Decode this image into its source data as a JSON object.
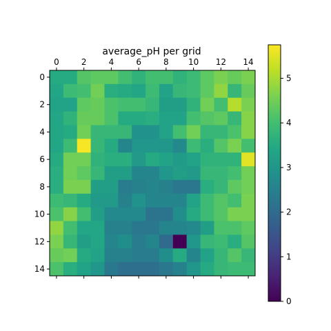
{
  "chart_data": {
    "type": "heatmap",
    "title": "average_pH per grid",
    "rows": 15,
    "cols": 15,
    "x_ticks": [
      "0",
      "2",
      "4",
      "6",
      "8",
      "10",
      "12",
      "14"
    ],
    "y_ticks": [
      "0",
      "2",
      "4",
      "6",
      "8",
      "10",
      "12",
      "14"
    ],
    "x_tick_position": "top",
    "colormap": "viridis",
    "colorbar": {
      "min": 0,
      "max": 5.75,
      "ticks": [
        "0",
        "1",
        "2",
        "3",
        "4",
        "5"
      ]
    },
    "values": [
      [
        3.5,
        3.5,
        4.2,
        4.3,
        4.3,
        4.0,
        3.7,
        4.0,
        4.0,
        3.7,
        3.9,
        4.3,
        4.6,
        4.4,
        4.6
      ],
      [
        3.4,
        3.9,
        4.0,
        4.5,
        3.6,
        3.5,
        3.4,
        3.9,
        3.3,
        3.8,
        3.9,
        4.3,
        4.8,
        3.8,
        4.4
      ],
      [
        3.3,
        3.3,
        4.3,
        4.4,
        4.1,
        4.0,
        4.0,
        3.8,
        3.2,
        3.2,
        3.7,
        4.5,
        4.0,
        5.1,
        4.6
      ],
      [
        3.4,
        3.7,
        4.4,
        4.4,
        4.1,
        3.5,
        3.5,
        3.6,
        3.3,
        3.3,
        4.0,
        4.2,
        4.3,
        3.8,
        4.7
      ],
      [
        3.4,
        3.5,
        4.5,
        3.8,
        3.8,
        3.8,
        2.9,
        2.9,
        3.3,
        4.0,
        4.5,
        3.8,
        3.8,
        4.1,
        4.7
      ],
      [
        3.4,
        3.9,
        5.7,
        3.8,
        3.5,
        2.6,
        3.0,
        3.0,
        3.0,
        2.7,
        3.9,
        3.6,
        4.2,
        4.6,
        4.0
      ],
      [
        3.5,
        4.5,
        4.5,
        3.7,
        3.6,
        3.6,
        3.1,
        3.5,
        3.3,
        3.1,
        3.3,
        3.7,
        3.7,
        3.7,
        5.5
      ],
      [
        3.6,
        4.5,
        4.3,
        3.8,
        3.2,
        3.2,
        2.6,
        2.6,
        3.0,
        3.2,
        3.1,
        3.8,
        3.8,
        4.0,
        4.5
      ],
      [
        3.6,
        4.6,
        4.6,
        3.2,
        3.2,
        2.4,
        2.5,
        2.6,
        2.5,
        2.3,
        2.3,
        3.6,
        3.8,
        4.3,
        4.5
      ],
      [
        3.9,
        3.8,
        3.5,
        3.1,
        3.1,
        2.5,
        2.9,
        2.6,
        2.6,
        2.6,
        3.3,
        3.9,
        4.2,
        4.0,
        4.6
      ],
      [
        4.1,
        4.7,
        4.0,
        3.2,
        2.7,
        2.7,
        2.7,
        2.2,
        2.2,
        2.8,
        3.5,
        3.9,
        4.2,
        4.6,
        4.6
      ],
      [
        4.8,
        4.0,
        3.4,
        3.4,
        2.5,
        2.5,
        2.3,
        2.3,
        2.6,
        2.6,
        2.7,
        3.2,
        4.1,
        4.1,
        4.3
      ],
      [
        4.6,
        3.8,
        3.2,
        3.4,
        2.6,
        2.8,
        2.4,
        2.6,
        2.0,
        0.0,
        3.0,
        3.8,
        3.9,
        3.6,
        4.2
      ],
      [
        4.4,
        4.5,
        3.5,
        3.3,
        2.5,
        2.5,
        2.4,
        2.4,
        2.8,
        3.5,
        2.6,
        3.3,
        3.8,
        4.2,
        3.8
      ],
      [
        4.1,
        3.6,
        3.3,
        3.0,
        2.3,
        2.1,
        2.1,
        2.1,
        2.3,
        2.5,
        3.0,
        3.5,
        3.8,
        3.9,
        3.9
      ]
    ]
  }
}
